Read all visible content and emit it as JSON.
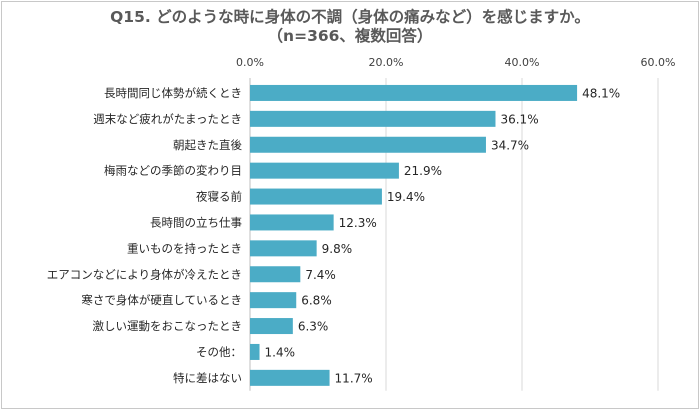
{
  "chart_data": {
    "type": "bar",
    "orientation": "horizontal",
    "title": "Q15. どのような時に身体の不調（身体の痛みなど）を感じますか。",
    "subtitle": "（n=366、複数回答）",
    "xlim": [
      0,
      60
    ],
    "x_ticks": [
      "0.0%",
      "20.0%",
      "40.0%",
      "60.0%"
    ],
    "x_tick_values": [
      0,
      20,
      40,
      60
    ],
    "grid": true,
    "bar_color": "#4bacc6",
    "categories": [
      "長時間同じ体勢が続くとき",
      "週末など疲れがたまったとき",
      "朝起きた直後",
      "梅雨などの季節の変わり目",
      "夜寝る前",
      "長時間の立ち仕事",
      "重いものを持ったとき",
      "エアコンなどにより身体が冷えたとき",
      "寒さで身体が硬直しているとき",
      "激しい運動をおこなったとき",
      "その他：",
      "特に差はない"
    ],
    "values": [
      48.1,
      36.1,
      34.7,
      21.9,
      19.4,
      12.3,
      9.8,
      7.4,
      6.8,
      6.3,
      1.4,
      11.7
    ],
    "value_labels": [
      "48.1%",
      "36.1%",
      "34.7%",
      "21.9%",
      "19.4%",
      "12.3%",
      "9.8%",
      "7.4%",
      "6.8%",
      "6.3%",
      "1.4%",
      "11.7%"
    ]
  }
}
